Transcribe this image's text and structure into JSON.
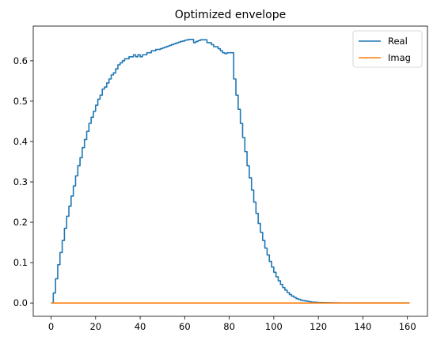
{
  "chart_data": {
    "type": "line",
    "title": "Optimized envelope",
    "xlabel": "",
    "ylabel": "",
    "xlim": [
      -8,
      169
    ],
    "ylim": [
      -0.033,
      0.686
    ],
    "xticks": [
      0,
      20,
      40,
      60,
      80,
      100,
      120,
      140,
      160
    ],
    "xtick_labels": [
      "0",
      "20",
      "40",
      "60",
      "80",
      "100",
      "120",
      "140",
      "160"
    ],
    "yticks": [
      0.0,
      0.1,
      0.2,
      0.3,
      0.4,
      0.5,
      0.6
    ],
    "ytick_labels": [
      "0.0",
      "0.1",
      "0.2",
      "0.3",
      "0.4",
      "0.5",
      "0.6"
    ],
    "grid": false,
    "legend": {
      "position": "top-right",
      "entries": [
        "Real",
        "Imag"
      ]
    },
    "step": "post",
    "series": [
      {
        "name": "Real",
        "color": "#1f77b4",
        "x": [
          0,
          1,
          2,
          3,
          4,
          5,
          6,
          7,
          8,
          9,
          10,
          11,
          12,
          13,
          14,
          15,
          16,
          17,
          18,
          19,
          20,
          21,
          22,
          23,
          24,
          25,
          26,
          27,
          28,
          29,
          30,
          31,
          32,
          33,
          34,
          35,
          36,
          37,
          38,
          39,
          40,
          41,
          42,
          43,
          44,
          45,
          46,
          47,
          48,
          49,
          50,
          51,
          52,
          53,
          54,
          55,
          56,
          57,
          58,
          59,
          60,
          61,
          62,
          63,
          64,
          65,
          66,
          67,
          68,
          69,
          70,
          71,
          72,
          73,
          74,
          75,
          76,
          77,
          78,
          79,
          80,
          81,
          82,
          83,
          84,
          85,
          86,
          87,
          88,
          89,
          90,
          91,
          92,
          93,
          94,
          95,
          96,
          97,
          98,
          99,
          100,
          101,
          102,
          103,
          104,
          105,
          106,
          107,
          108,
          109,
          110,
          111,
          112,
          113,
          114,
          115,
          116,
          117,
          118,
          119,
          120,
          121,
          122,
          123,
          124,
          125,
          126,
          127,
          128,
          129,
          130,
          131,
          132,
          133,
          134,
          135,
          136,
          137,
          138,
          139,
          140,
          141,
          142,
          143,
          144,
          145,
          146,
          147,
          148,
          149,
          150,
          151,
          152,
          153,
          154,
          155,
          156,
          157,
          158,
          159,
          160,
          161
        ],
        "values": [
          0.0,
          0.025,
          0.06,
          0.095,
          0.125,
          0.155,
          0.185,
          0.215,
          0.24,
          0.265,
          0.29,
          0.315,
          0.34,
          0.36,
          0.385,
          0.405,
          0.425,
          0.445,
          0.46,
          0.475,
          0.49,
          0.505,
          0.515,
          0.53,
          0.535,
          0.545,
          0.555,
          0.565,
          0.57,
          0.58,
          0.59,
          0.595,
          0.6,
          0.605,
          0.605,
          0.61,
          0.61,
          0.615,
          0.61,
          0.615,
          0.61,
          0.615,
          0.615,
          0.62,
          0.62,
          0.625,
          0.625,
          0.628,
          0.628,
          0.63,
          0.632,
          0.634,
          0.636,
          0.638,
          0.64,
          0.642,
          0.644,
          0.646,
          0.648,
          0.649,
          0.651,
          0.652,
          0.653,
          0.653,
          0.645,
          0.648,
          0.65,
          0.652,
          0.652,
          0.652,
          0.645,
          0.645,
          0.64,
          0.635,
          0.635,
          0.63,
          0.625,
          0.62,
          0.618,
          0.62,
          0.62,
          0.62,
          0.555,
          0.515,
          0.48,
          0.445,
          0.41,
          0.375,
          0.34,
          0.31,
          0.28,
          0.25,
          0.222,
          0.197,
          0.175,
          0.155,
          0.136,
          0.119,
          0.103,
          0.089,
          0.076,
          0.065,
          0.055,
          0.046,
          0.038,
          0.032,
          0.026,
          0.021,
          0.017,
          0.014,
          0.011,
          0.009,
          0.007,
          0.006,
          0.005,
          0.004,
          0.003,
          0.002,
          0.002,
          0.0015,
          0.001,
          0.001,
          0.0008,
          0.0006,
          0.0005,
          0.0004,
          0.0003,
          0.0002,
          0.0001,
          0.0001,
          0.0,
          0.0,
          0.0,
          0.0,
          0.0,
          0.0,
          0.0,
          0.0,
          0.0,
          0.0,
          0.0,
          0.0,
          0.0,
          0.0,
          0.0,
          0.0,
          0.0,
          0.0,
          0.0,
          0.0,
          0.0,
          0.0,
          0.0,
          0.0,
          0.0,
          0.0,
          0.0,
          0.0,
          0.0,
          0.0,
          0.0,
          0.0
        ]
      },
      {
        "name": "Imag",
        "color": "#ff7f0e",
        "x": [
          0,
          161
        ],
        "values": [
          0.0,
          0.0
        ]
      }
    ]
  }
}
